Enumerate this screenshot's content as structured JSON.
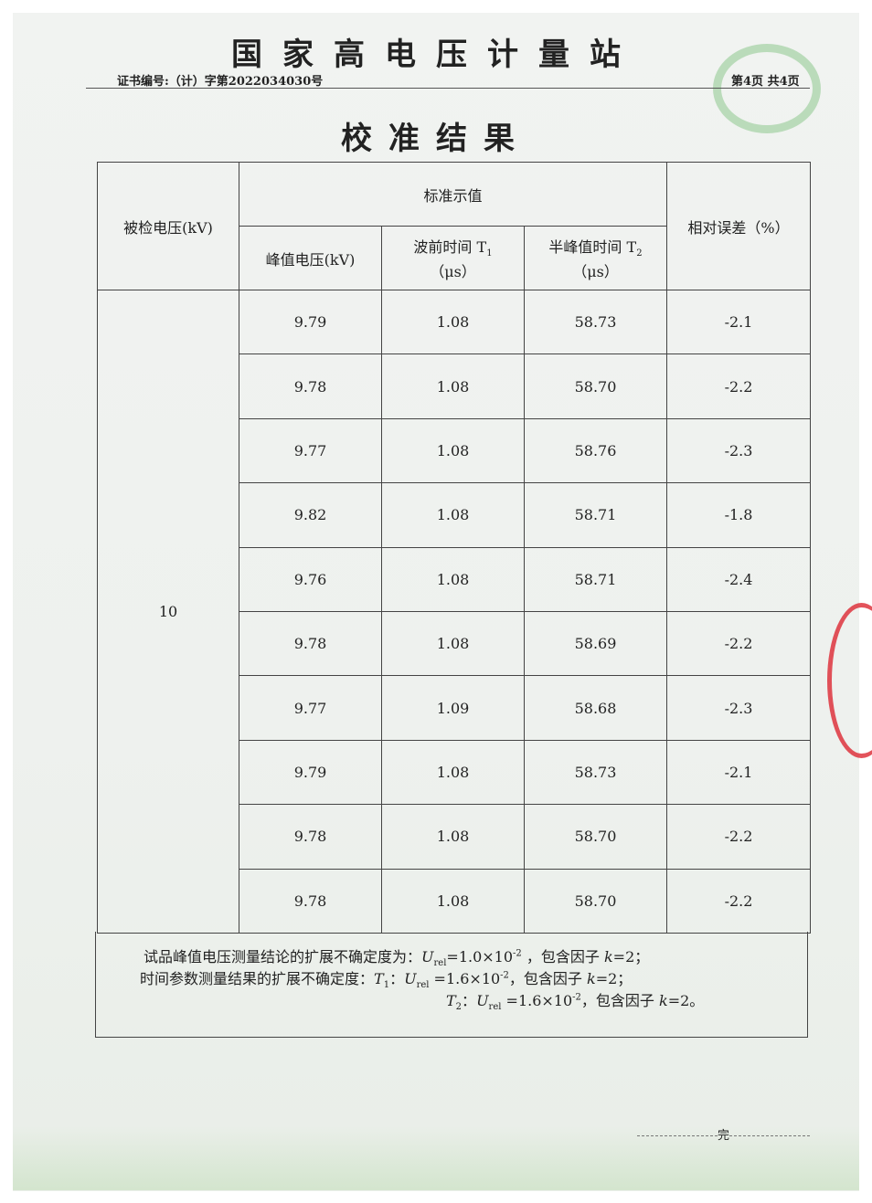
{
  "header": {
    "institution": "国家高电压计量站",
    "certificate_no": "证书编号:（计）字第2022034030号",
    "page_info": "第4页  共4页"
  },
  "title": "校准结果",
  "table": {
    "col_tested_voltage": "被检电压(kV)",
    "col_standard": "标准示值",
    "col_peak": "峰值电压(kV)",
    "col_t1": "波前时间 T",
    "col_t1_sub": "1",
    "col_t2": "半峰值时间 T",
    "col_t2_sub": "2",
    "col_unit": "（μs）",
    "col_error": "相对误差（%）",
    "tested_voltage": "10",
    "rows": [
      [
        "9.79",
        "1.08",
        "58.73",
        "-2.1"
      ],
      [
        "9.78",
        "1.08",
        "58.70",
        "-2.2"
      ],
      [
        "9.77",
        "1.08",
        "58.76",
        "-2.3"
      ],
      [
        "9.82",
        "1.08",
        "58.71",
        "-1.8"
      ],
      [
        "9.76",
        "1.08",
        "58.71",
        "-2.4"
      ],
      [
        "9.78",
        "1.08",
        "58.69",
        "-2.2"
      ],
      [
        "9.77",
        "1.09",
        "58.68",
        "-2.3"
      ],
      [
        "9.79",
        "1.08",
        "58.73",
        "-2.1"
      ],
      [
        "9.78",
        "1.08",
        "58.70",
        "-2.2"
      ],
      [
        "9.78",
        "1.08",
        "58.70",
        "-2.2"
      ]
    ]
  },
  "notes": {
    "line1_prefix": "试品峰值电压测量结论的扩展不确定度为：",
    "line1_value": "=1.0×10",
    "line1_exp": "-2",
    "line1_suffix": " ，包含因子 ",
    "k_value": "=2；",
    "line2_prefix": "时间参数测量结果的扩展不确定度：",
    "line2_value": " =1.6×10",
    "line2_exp": "-2",
    "line2_suffix": "，包含因子 ",
    "line3_value": " =1.6×10",
    "line3_exp": "-2",
    "line3_suffix": "，包含因子 ",
    "k_value_end": "=2。",
    "U": "U",
    "rel": "rel",
    "T": "T",
    "one": "1",
    "two": "2",
    "colon": "：",
    "k": "k"
  },
  "footer": {
    "end_mark": "完"
  }
}
